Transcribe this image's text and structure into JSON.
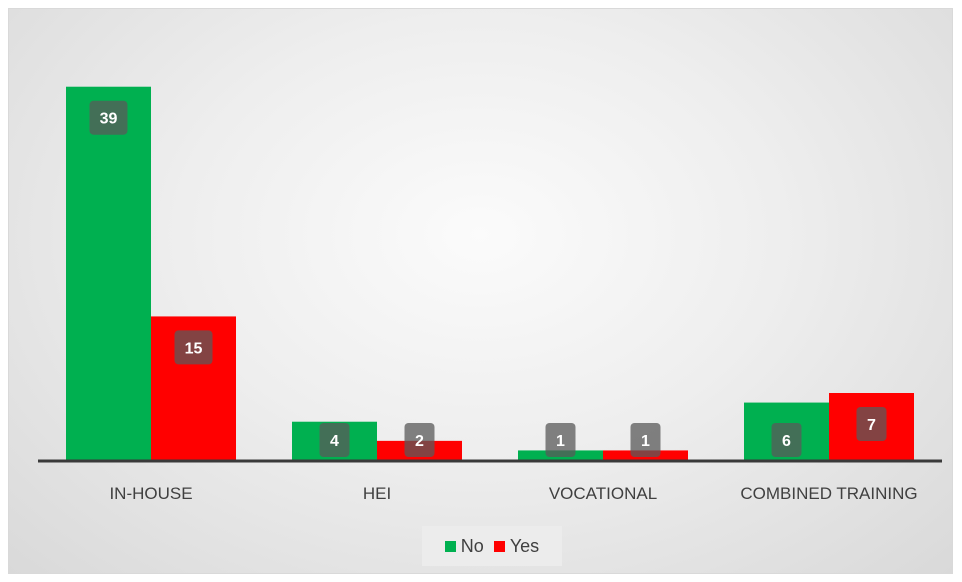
{
  "chart_data": {
    "type": "bar",
    "categories": [
      "IN-HOUSE",
      "HEI",
      "VOCATIONAL",
      "COMBINED TRAINING"
    ],
    "series": [
      {
        "name": "No",
        "values": [
          39,
          4,
          1,
          6
        ],
        "color": "#00b050"
      },
      {
        "name": "Yes",
        "values": [
          15,
          2,
          1,
          7
        ],
        "color": "#ff0000"
      }
    ],
    "title": "",
    "xlabel": "",
    "ylabel": "",
    "ylim": [
      0,
      42
    ],
    "grid": false,
    "legend_position": "bottom",
    "data_labels": true
  }
}
